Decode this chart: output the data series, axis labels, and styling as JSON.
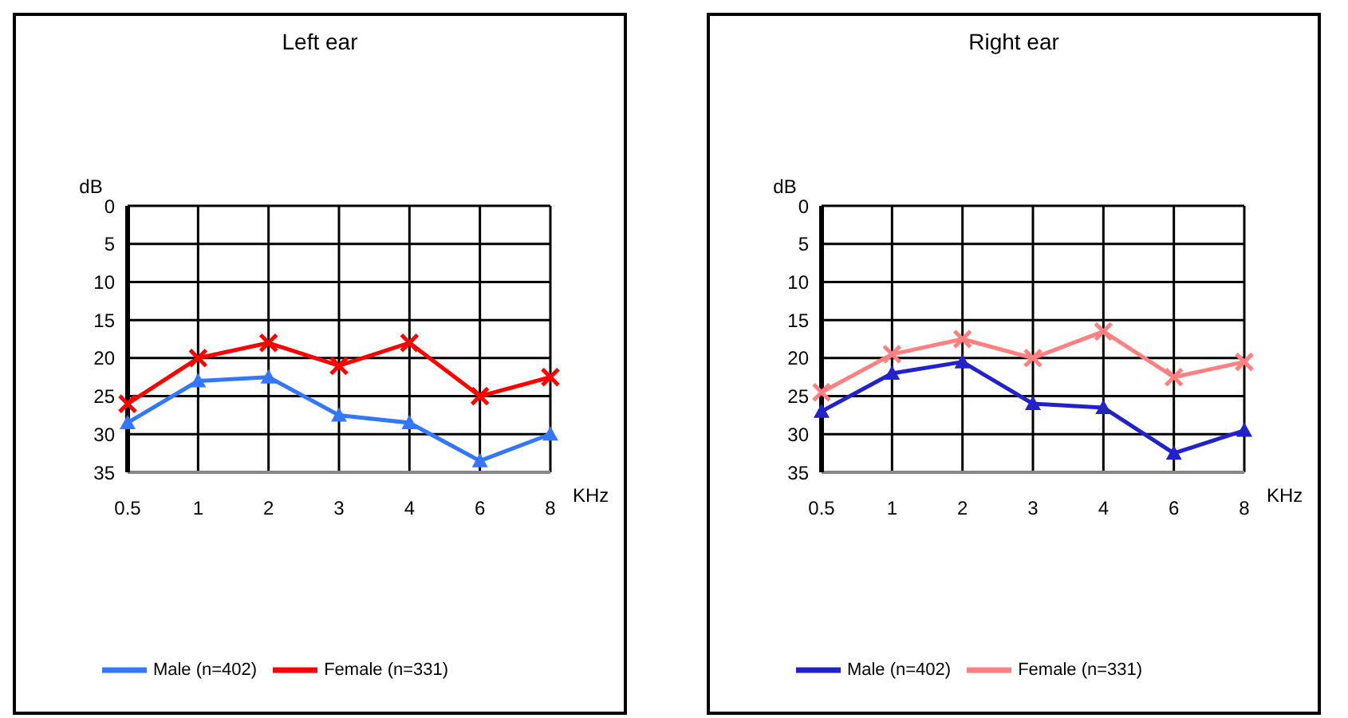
{
  "chart_data": [
    {
      "type": "line",
      "title": "Left ear",
      "ylabel": "dB",
      "xlabel": "KHz",
      "categories": [
        "0.5",
        "1",
        "2",
        "3",
        "4",
        "6",
        "8"
      ],
      "ylim": [
        35,
        0
      ],
      "yticks": [
        0,
        5,
        10,
        15,
        20,
        25,
        30,
        35
      ],
      "grid": true,
      "legend": "bottom",
      "series": [
        {
          "name": "Male (n=402)",
          "color": "#3377ff",
          "marker": "triangle",
          "values": [
            28.5,
            23,
            22.5,
            27.5,
            28.5,
            33.5,
            30
          ]
        },
        {
          "name": "Female (n=331)",
          "color": "#ff0000",
          "marker": "cross",
          "values": [
            26,
            20,
            18,
            21,
            18,
            25,
            22.5
          ]
        }
      ]
    },
    {
      "type": "line",
      "title": "Right ear",
      "ylabel": "dB",
      "xlabel": "KHz",
      "categories": [
        "0.5",
        "1",
        "2",
        "3",
        "4",
        "6",
        "8"
      ],
      "ylim": [
        35,
        0
      ],
      "yticks": [
        0,
        5,
        10,
        15,
        20,
        25,
        30,
        35
      ],
      "grid": true,
      "legend": "bottom",
      "series": [
        {
          "name": "Male (n=402)",
          "color": "#2222cc",
          "marker": "triangle",
          "values": [
            27,
            22,
            20.5,
            26,
            26.5,
            32.5,
            29.5
          ]
        },
        {
          "name": "Female (n=331)",
          "color": "#ff8080",
          "marker": "cross",
          "values": [
            24.5,
            19.5,
            17.5,
            20,
            16.5,
            22.5,
            20.5
          ]
        }
      ]
    }
  ]
}
